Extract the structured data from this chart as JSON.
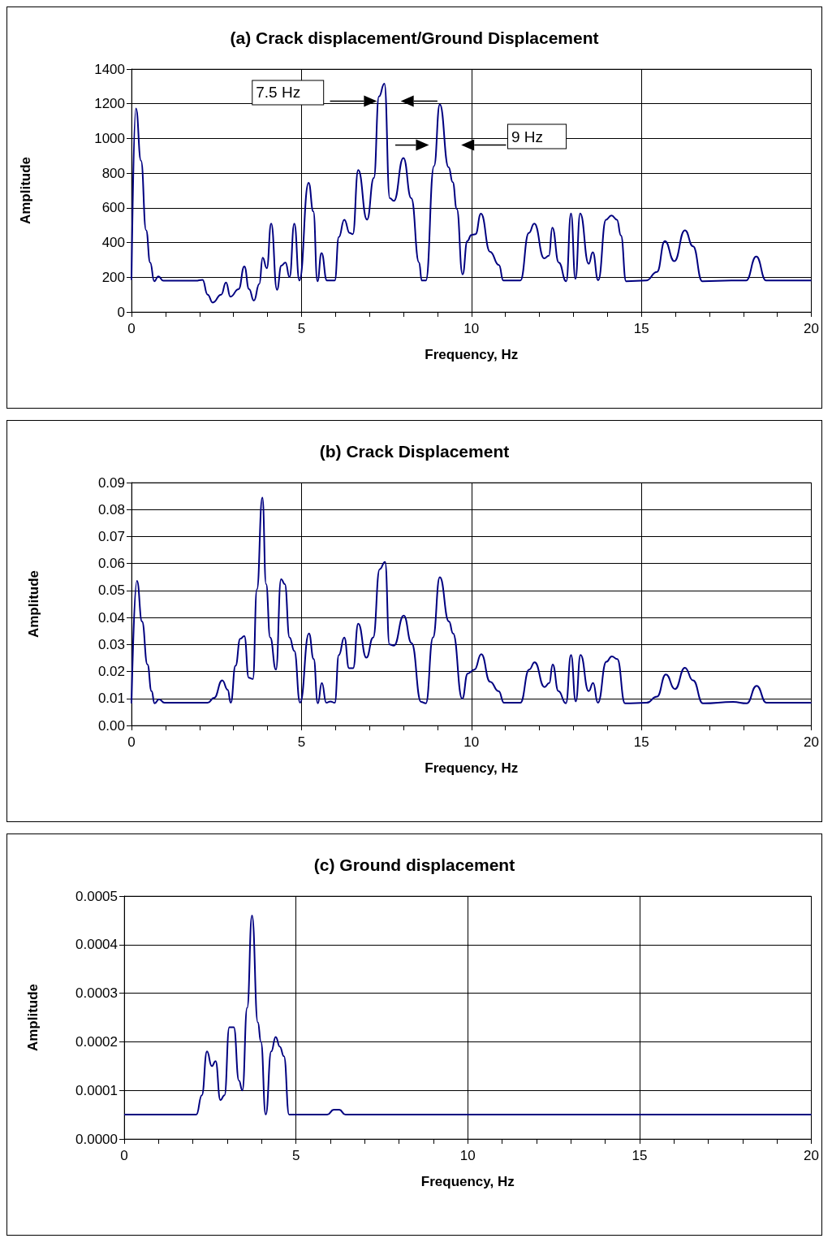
{
  "chart_data": [
    {
      "type": "line",
      "title": "(a) Crack displacement/Ground Displacement",
      "xlabel": "Frequency, Hz",
      "ylabel": "Amplitude",
      "grid": true,
      "xlim": [
        0,
        20
      ],
      "ylim": [
        0,
        1400
      ],
      "xticks": [
        0,
        {
          "value": 1,
          "label": null
        },
        {
          "value": 2,
          "label": null
        },
        {
          "value": 3,
          "label": null
        },
        {
          "value": 4,
          "label": null
        },
        5,
        {
          "value": 6,
          "label": null
        },
        {
          "value": 7,
          "label": null
        },
        {
          "value": 8,
          "label": null
        },
        {
          "value": 9,
          "label": null
        },
        10,
        {
          "value": 11,
          "label": null
        },
        {
          "value": 12,
          "label": null
        },
        {
          "value": 13,
          "label": null
        },
        {
          "value": 14,
          "label": null
        },
        15,
        {
          "value": 16,
          "label": null
        },
        {
          "value": 17,
          "label": null
        },
        {
          "value": 18,
          "label": null
        },
        {
          "value": 19,
          "label": null
        },
        20
      ],
      "yticks": [
        0,
        200,
        400,
        600,
        800,
        1000,
        1200,
        1400
      ],
      "annotations": [
        "7.5 Hz",
        "9 Hz"
      ],
      "series": [
        {
          "color": "#000080",
          "x": [
            0,
            0.13,
            0.28,
            0.43,
            0.55,
            0.67,
            0.79,
            0.94,
            1.89,
            2.09,
            2.24,
            2.39,
            2.64,
            2.78,
            2.91,
            3.15,
            3.32,
            3.46,
            3.6,
            3.76,
            3.86,
            3.98,
            4.11,
            4.28,
            4.41,
            4.53,
            4.65,
            4.79,
            4.94,
            5.21,
            5.35,
            5.47,
            5.59,
            5.75,
            5.98,
            6.1,
            6.26,
            6.42,
            6.51,
            6.67,
            6.93,
            7.13,
            7.28,
            7.44,
            7.6,
            7.72,
            8.0,
            8.23,
            8.46,
            8.54,
            8.66,
            8.9,
            9.07,
            9.33,
            9.45,
            9.57,
            9.74,
            9.88,
            10.0,
            10.12,
            10.28,
            10.55,
            10.81,
            10.94,
            11.44,
            11.69,
            11.85,
            12.14,
            12.28,
            12.38,
            12.57,
            12.79,
            12.93,
            13.06,
            13.2,
            13.45,
            13.57,
            13.73,
            13.96,
            14.12,
            14.28,
            14.4,
            14.55,
            15.14,
            15.46,
            15.69,
            15.97,
            16.28,
            16.52,
            16.79,
            17.65,
            18.08,
            18.38,
            18.67,
            20
          ],
          "values": [
            185,
            1173,
            872,
            471,
            285,
            177,
            205,
            180,
            180,
            185,
            100,
            54,
            100,
            170,
            88,
            131,
            262,
            131,
            65,
            162,
            313,
            252,
            509,
            128,
            267,
            285,
            201,
            509,
            181,
            745,
            579,
            177,
            340,
            181,
            181,
            432,
            532,
            455,
            448,
            818,
            532,
            772,
            1242,
            1316,
            656,
            640,
            887,
            656,
            285,
            181,
            181,
            841,
            1196,
            833,
            748,
            594,
            216,
            409,
            444,
            448,
            566,
            347,
            270,
            181,
            181,
            455,
            509,
            309,
            324,
            486,
            285,
            177,
            568,
            190,
            568,
            278,
            344,
            183,
            532,
            556,
            532,
            440,
            177,
            181,
            231,
            409,
            293,
            471,
            378,
            177,
            181,
            181,
            319,
            181,
            181
          ]
        }
      ]
    },
    {
      "type": "line",
      "title": "(b) Crack Displacement",
      "xlabel": "Frequency, Hz",
      "ylabel": "Amplitude",
      "grid": true,
      "xlim": [
        0,
        20
      ],
      "ylim": [
        0,
        0.09
      ],
      "xticks": [
        0,
        {
          "value": 1,
          "label": null
        },
        {
          "value": 2,
          "label": null
        },
        {
          "value": 3,
          "label": null
        },
        {
          "value": 4,
          "label": null
        },
        5,
        {
          "value": 6,
          "label": null
        },
        {
          "value": 7,
          "label": null
        },
        {
          "value": 8,
          "label": null
        },
        {
          "value": 9,
          "label": null
        },
        10,
        {
          "value": 11,
          "label": null
        },
        {
          "value": 12,
          "label": null
        },
        {
          "value": 13,
          "label": null
        },
        {
          "value": 14,
          "label": null
        },
        15,
        {
          "value": 16,
          "label": null
        },
        {
          "value": 17,
          "label": null
        },
        {
          "value": 18,
          "label": null
        },
        {
          "value": 19,
          "label": null
        },
        20
      ],
      "yticks": [
        {
          "value": 0,
          "label": "0.00"
        },
        {
          "value": 0.01,
          "label": "0.01"
        },
        {
          "value": 0.02,
          "label": "0.02"
        },
        {
          "value": 0.03,
          "label": "0.03"
        },
        {
          "value": 0.04,
          "label": "0.04"
        },
        {
          "value": 0.05,
          "label": "0.05"
        },
        {
          "value": 0.06,
          "label": "0.06"
        },
        {
          "value": 0.07,
          "label": "0.07"
        },
        {
          "value": 0.08,
          "label": "0.08"
        },
        {
          "value": 0.09,
          "label": "0.09"
        }
      ],
      "series": [
        {
          "color": "#000080",
          "x": [
            0,
            0.16,
            0.31,
            0.47,
            0.59,
            0.68,
            0.81,
            0.97,
            2.24,
            2.43,
            2.67,
            2.83,
            2.92,
            3.06,
            3.2,
            3.32,
            3.45,
            3.57,
            3.69,
            3.85,
            3.96,
            4.08,
            4.25,
            4.4,
            4.51,
            4.65,
            4.79,
            4.96,
            5.22,
            5.36,
            5.48,
            5.6,
            5.73,
            5.85,
            5.98,
            6.1,
            6.26,
            6.4,
            6.52,
            6.67,
            6.91,
            7.11,
            7.3,
            7.46,
            7.59,
            7.72,
            8.01,
            8.24,
            8.52,
            8.66,
            8.87,
            9.07,
            9.34,
            9.46,
            9.73,
            9.89,
            10.09,
            10.29,
            10.55,
            10.8,
            10.96,
            11.44,
            11.7,
            11.86,
            12.15,
            12.29,
            12.39,
            12.56,
            12.78,
            12.93,
            13.07,
            13.21,
            13.45,
            13.58,
            13.72,
            13.97,
            14.13,
            14.29,
            14.52,
            15.15,
            15.46,
            15.72,
            15.99,
            16.28,
            16.52,
            16.81,
            17.7,
            18.1,
            18.39,
            18.68,
            20
          ],
          "values": [
            0.0082,
            0.0536,
            0.0385,
            0.0226,
            0.0127,
            0.0082,
            0.0097,
            0.0084,
            0.0084,
            0.0102,
            0.0167,
            0.0132,
            0.0084,
            0.0221,
            0.0321,
            0.0331,
            0.0177,
            0.0172,
            0.0504,
            0.0844,
            0.0524,
            0.0326,
            0.0207,
            0.0542,
            0.0524,
            0.0326,
            0.0276,
            0.0084,
            0.0341,
            0.0246,
            0.0082,
            0.0157,
            0.0084,
            0.0089,
            0.0084,
            0.0261,
            0.0326,
            0.0212,
            0.0212,
            0.0377,
            0.0251,
            0.0326,
            0.0579,
            0.0606,
            0.03,
            0.0296,
            0.0407,
            0.0305,
            0.0087,
            0.0082,
            0.0326,
            0.0549,
            0.0385,
            0.0341,
            0.0099,
            0.0192,
            0.0207,
            0.0264,
            0.0162,
            0.0127,
            0.0084,
            0.0084,
            0.0207,
            0.0234,
            0.0142,
            0.0157,
            0.0226,
            0.0127,
            0.0082,
            0.0261,
            0.0089,
            0.0261,
            0.0127,
            0.0157,
            0.0084,
            0.0236,
            0.0256,
            0.0246,
            0.0082,
            0.0084,
            0.0107,
            0.0189,
            0.0135,
            0.0214,
            0.0167,
            0.0082,
            0.0087,
            0.0082,
            0.0147,
            0.0084,
            0.0084
          ]
        }
      ]
    },
    {
      "type": "line",
      "title": "(c) Ground displacement",
      "xlabel": "Frequency, Hz",
      "ylabel": "Amplitude",
      "grid": true,
      "xlim": [
        0,
        20
      ],
      "ylim": [
        0,
        0.0005
      ],
      "xticks": [
        0,
        {
          "value": 1,
          "label": null
        },
        {
          "value": 2,
          "label": null
        },
        {
          "value": 3,
          "label": null
        },
        {
          "value": 4,
          "label": null
        },
        5,
        {
          "value": 6,
          "label": null
        },
        {
          "value": 7,
          "label": null
        },
        {
          "value": 8,
          "label": null
        },
        {
          "value": 9,
          "label": null
        },
        10,
        {
          "value": 11,
          "label": null
        },
        {
          "value": 12,
          "label": null
        },
        {
          "value": 13,
          "label": null
        },
        {
          "value": 14,
          "label": null
        },
        15,
        {
          "value": 16,
          "label": null
        },
        {
          "value": 17,
          "label": null
        },
        {
          "value": 18,
          "label": null
        },
        {
          "value": 19,
          "label": null
        },
        20
      ],
      "yticks": [
        {
          "value": 0,
          "label": "0.0000"
        },
        {
          "value": 0.0001,
          "label": "0.0001"
        },
        {
          "value": 0.0002,
          "label": "0.0002"
        },
        {
          "value": 0.0003,
          "label": "0.0003"
        },
        {
          "value": 0.0004,
          "label": "0.0004"
        },
        {
          "value": 0.0005,
          "label": "0.0005"
        }
      ],
      "series": [
        {
          "color": "#000080",
          "x": [
            0,
            1.87,
            1.97,
            2.1,
            2.26,
            2.41,
            2.55,
            2.66,
            2.8,
            2.92,
            3.06,
            3.19,
            3.34,
            3.44,
            3.58,
            3.72,
            3.89,
            3.98,
            4.12,
            4.28,
            4.41,
            4.53,
            4.65,
            4.8,
            5,
            5.91,
            6.1,
            6.26,
            6.44,
            20
          ],
          "values": [
            5e-05,
            5e-05,
            5e-05,
            5e-05,
            9e-05,
            0.00018,
            0.00015,
            0.00016,
            8e-05,
            9e-05,
            0.00023,
            0.00023,
            0.00012,
            0.0001,
            0.00027,
            0.00046,
            0.00024,
            0.0002,
            5e-05,
            0.00018,
            0.00021,
            0.00019,
            0.00017,
            5e-05,
            5e-05,
            5e-05,
            6e-05,
            6e-05,
            5e-05,
            5e-05
          ]
        }
      ]
    }
  ]
}
